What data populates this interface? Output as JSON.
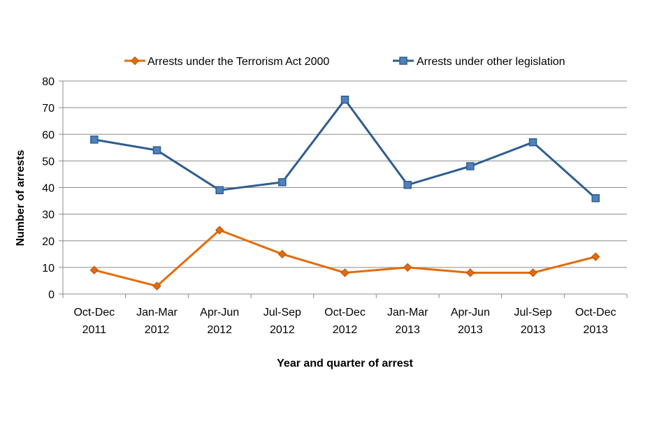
{
  "chart_data": {
    "type": "line",
    "categories": [
      [
        "Oct-Dec",
        "2011"
      ],
      [
        "Jan-Mar",
        "2012"
      ],
      [
        "Apr-Jun",
        "2012"
      ],
      [
        "Jul-Sep",
        "2012"
      ],
      [
        "Oct-Dec",
        "2012"
      ],
      [
        "Jan-Mar",
        "2013"
      ],
      [
        "Apr-Jun",
        "2013"
      ],
      [
        "Jul-Sep",
        "2013"
      ],
      [
        "Oct-Dec",
        "2013"
      ]
    ],
    "series": [
      {
        "name": "Arrests under the Terrorism Act 2000",
        "values": [
          9,
          3,
          24,
          15,
          8,
          10,
          8,
          8,
          14
        ],
        "color": "#e36c09",
        "marker": "diamond"
      },
      {
        "name": "Arrests under other legislation",
        "values": [
          58,
          54,
          39,
          42,
          73,
          41,
          48,
          57,
          36
        ],
        "color": "#2f5d8e",
        "marker": "square"
      }
    ],
    "title": "",
    "xlabel": "Year and quarter of arrest",
    "ylabel": "Number of arrests",
    "ylim": [
      0,
      80
    ],
    "yticks": [
      0,
      10,
      20,
      30,
      40,
      50,
      60,
      70,
      80
    ],
    "grid": true,
    "legend_position": "top"
  }
}
